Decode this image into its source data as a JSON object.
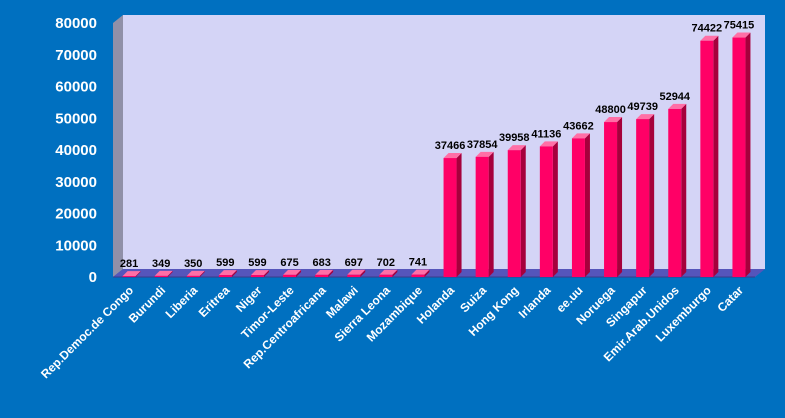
{
  "chart_data": {
    "type": "bar",
    "title": "",
    "xlabel": "",
    "ylabel": "",
    "ylim": [
      0,
      80000
    ],
    "yticks": [
      0,
      10000,
      20000,
      30000,
      40000,
      50000,
      60000,
      70000,
      80000
    ],
    "grid": false,
    "legend": "none",
    "categories": [
      "Rep.Democ.de Congo",
      "Burundi",
      "Liberia",
      "Eritrea",
      "Niger",
      "Timor-Leste",
      "Rep.Centroafricana",
      "Malawi",
      "Sierra Leona",
      "Mozambique",
      "Holanda",
      "Suiza",
      "Hong Kong",
      "Irlanda",
      "ee.uu",
      "Noruega",
      "Singapur",
      "Emir.Arab.Unidos",
      "Luxemburgo",
      "Catar"
    ],
    "values": [
      281,
      349,
      350,
      599,
      599,
      675,
      683,
      697,
      702,
      741,
      37466,
      37854,
      39958,
      41136,
      43662,
      48800,
      49739,
      52944,
      74422,
      75415
    ],
    "colors": {
      "background": "#0070c0",
      "plot_area": "#d4d4f6",
      "bar_front": "#ff0066",
      "bar_side": "#a6003c",
      "bar_top": "#ff6fa6",
      "left_wall": "#9090a8",
      "floor": "#5555bb",
      "tick_text": "#ffffff",
      "data_label": "#000000"
    }
  }
}
